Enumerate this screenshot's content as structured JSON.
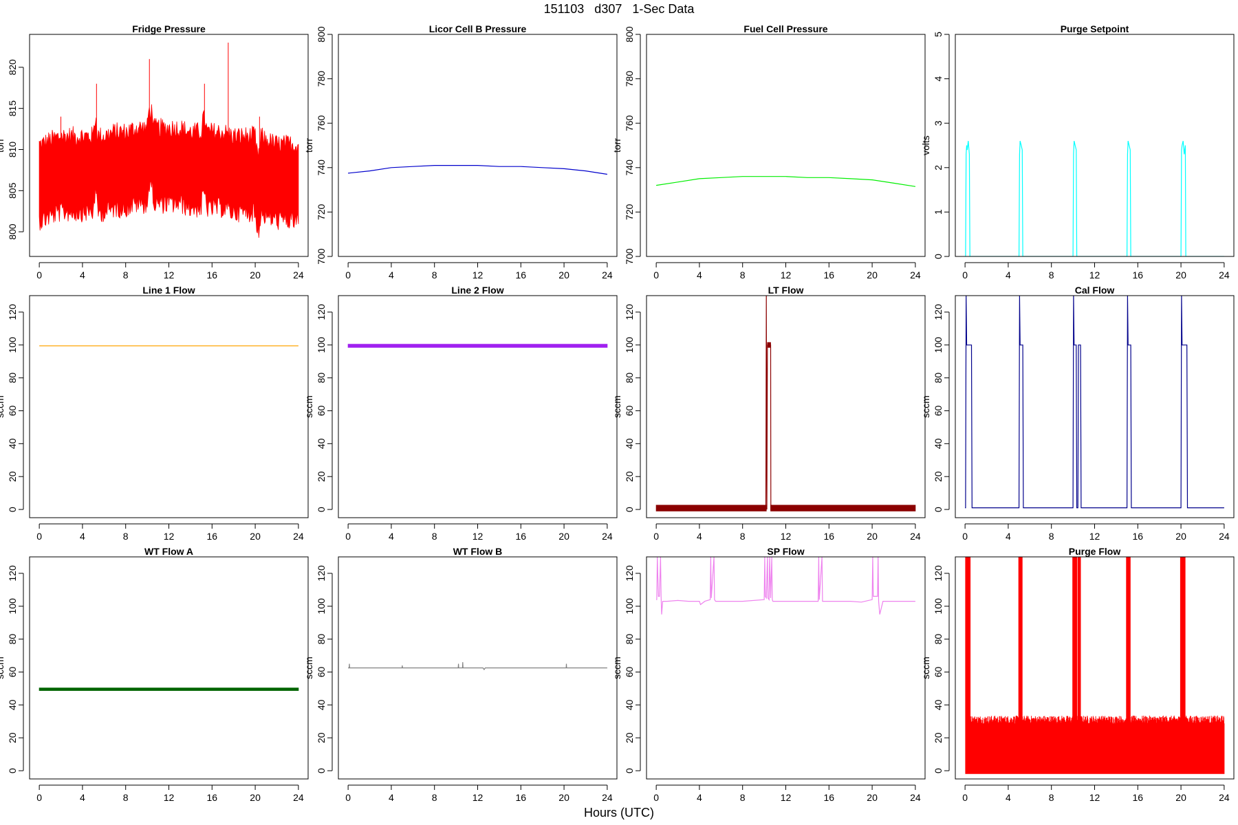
{
  "figure": {
    "title": "151103   d307   1-Sec Data",
    "xlabel": "Hours (UTC)"
  },
  "chart_data": [
    {
      "type": "line",
      "title": "Fridge Pressure",
      "ylabel": "torr",
      "color": "#ff0000",
      "xlim": [
        0,
        24
      ],
      "ylim": [
        797,
        824
      ],
      "xticks": [
        0,
        4,
        8,
        12,
        16,
        20,
        24
      ],
      "yticks": [
        800,
        805,
        810,
        815,
        820
      ],
      "series": [
        {
          "style": "noise_band",
          "x": [
            0,
            0.2,
            1,
            2,
            3,
            4,
            5,
            5.1,
            5.3,
            5.4,
            6,
            7,
            8,
            9,
            10,
            10.1,
            10.5,
            10.6,
            11,
            12,
            13,
            14,
            15,
            15.1,
            15.4,
            15.5,
            16,
            17,
            18,
            19,
            20,
            20.1,
            20.4,
            20.5,
            21,
            22,
            23,
            24
          ],
          "y": [
            806,
            806,
            806.5,
            807,
            807,
            807,
            807,
            809,
            809,
            807,
            807,
            807.5,
            807.5,
            808,
            808,
            810,
            810,
            808,
            808,
            808,
            808,
            807.5,
            807.5,
            809,
            809,
            807.5,
            807.5,
            807.5,
            807,
            807,
            807,
            805,
            805,
            807,
            806.5,
            806,
            806,
            806
          ],
          "spread": 4.5,
          "max_y": 823
        }
      ]
    },
    {
      "type": "line",
      "title": "Licor Cell B Pressure",
      "ylabel": "torr",
      "color": "#0000cc",
      "xlim": [
        0,
        24
      ],
      "ylim": [
        700,
        800
      ],
      "xticks": [
        0,
        4,
        8,
        12,
        16,
        20,
        24
      ],
      "yticks": [
        700,
        720,
        740,
        760,
        780,
        800
      ],
      "series": [
        {
          "style": "line",
          "x": [
            0,
            2,
            4,
            6,
            8,
            10,
            12,
            14,
            16,
            18,
            20,
            22,
            24
          ],
          "y": [
            737.5,
            738.5,
            740,
            740.5,
            741,
            741,
            741,
            740.5,
            740.5,
            740,
            739.5,
            738.5,
            737
          ]
        }
      ]
    },
    {
      "type": "line",
      "title": "Fuel Cell Pressure",
      "ylabel": "torr",
      "color": "#00ee00",
      "xlim": [
        0,
        24
      ],
      "ylim": [
        700,
        800
      ],
      "xticks": [
        0,
        4,
        8,
        12,
        16,
        20,
        24
      ],
      "yticks": [
        700,
        720,
        740,
        760,
        780,
        800
      ],
      "series": [
        {
          "style": "line",
          "x": [
            0,
            2,
            4,
            6,
            8,
            10,
            12,
            14,
            16,
            18,
            20,
            22,
            24
          ],
          "y": [
            732,
            733.5,
            735,
            735.5,
            736,
            736,
            736,
            735.5,
            735.5,
            735,
            734.5,
            733,
            731.5
          ]
        }
      ]
    },
    {
      "type": "line",
      "title": "Purge Setpoint",
      "ylabel": "volts",
      "color": "#00ffff",
      "xlim": [
        0,
        24
      ],
      "ylim": [
        0,
        5
      ],
      "xticks": [
        0,
        4,
        8,
        12,
        16,
        20,
        24
      ],
      "yticks": [
        0,
        1,
        2,
        3,
        4,
        5
      ],
      "series": [
        {
          "style": "line",
          "x": [
            0,
            0.05,
            0.1,
            0.15,
            0.2,
            0.3,
            0.4,
            0.45,
            0.5,
            5,
            5.05,
            5.1,
            5.2,
            5.3,
            5.35,
            5.4,
            10,
            10.05,
            10.1,
            10.2,
            10.3,
            10.35,
            10.4,
            15,
            15.05,
            15.1,
            15.2,
            15.3,
            15.35,
            15.4,
            20,
            20.05,
            20.1,
            20.2,
            20.3,
            20.4,
            20.45,
            20.5,
            24
          ],
          "y": [
            0,
            0,
            2.3,
            2.5,
            2.4,
            2.6,
            2.3,
            0,
            0,
            0,
            2.3,
            2.6,
            2.5,
            2.4,
            0,
            0,
            0,
            2.3,
            2.6,
            2.5,
            2.4,
            0,
            0,
            0,
            2.3,
            2.6,
            2.5,
            2.4,
            0,
            0,
            0,
            2.4,
            2.5,
            2.6,
            2.3,
            2.5,
            0,
            0,
            0
          ]
        }
      ]
    },
    {
      "type": "line",
      "title": "Line 1 Flow",
      "ylabel": "sccm",
      "color": "#ffa500",
      "xlim": [
        0,
        24
      ],
      "ylim": [
        -5,
        130
      ],
      "xticks": [
        0,
        4,
        8,
        12,
        16,
        20,
        24
      ],
      "yticks": [
        0,
        20,
        40,
        60,
        80,
        100,
        120
      ],
      "series": [
        {
          "style": "line",
          "x": [
            0,
            24
          ],
          "y": [
            99.5,
            99.5
          ]
        }
      ]
    },
    {
      "type": "line",
      "title": "Line 2 Flow",
      "ylabel": "sccm",
      "color": "#a020f0",
      "xlim": [
        0,
        24
      ],
      "ylim": [
        -5,
        130
      ],
      "xticks": [
        0,
        4,
        8,
        12,
        16,
        20,
        24
      ],
      "yticks": [
        0,
        20,
        40,
        60,
        80,
        100,
        120
      ],
      "series": [
        {
          "style": "band",
          "x": [
            0,
            24
          ],
          "y": [
            99.5,
            99.5
          ],
          "spread": 1
        }
      ]
    },
    {
      "type": "line",
      "title": "LT Flow",
      "ylabel": "sccm",
      "color": "#8b0000",
      "xlim": [
        0,
        24
      ],
      "ylim": [
        -5,
        130
      ],
      "xticks": [
        0,
        4,
        8,
        12,
        16,
        20,
        24
      ],
      "yticks": [
        0,
        20,
        40,
        60,
        80,
        100,
        120
      ],
      "series": [
        {
          "style": "band",
          "x": [
            0,
            10.2
          ],
          "y": [
            0.8,
            0.8
          ],
          "spread": 1.8
        },
        {
          "style": "band",
          "x": [
            10.6,
            24
          ],
          "y": [
            0.8,
            0.8
          ],
          "spread": 1.8
        },
        {
          "style": "band",
          "x": [
            10.3,
            10.6
          ],
          "y": [
            100,
            100
          ],
          "spread": 1.5
        },
        {
          "style": "line",
          "x": [
            10.15,
            10.2,
            10.25,
            10.3,
            10.6,
            10.62,
            10.65
          ],
          "y": [
            0,
            130,
            0,
            100,
            100,
            0,
            0
          ]
        }
      ]
    },
    {
      "type": "line",
      "title": "Cal Flow",
      "ylabel": "sccm",
      "color": "#00008b",
      "xlim": [
        0,
        24
      ],
      "ylim": [
        -5,
        130
      ],
      "xticks": [
        0,
        4,
        8,
        12,
        16,
        20,
        24
      ],
      "yticks": [
        0,
        20,
        40,
        60,
        80,
        100,
        120
      ],
      "series": [
        {
          "style": "line",
          "x": [
            0,
            0.05,
            0.1,
            0.15,
            0.6,
            0.65,
            5.0,
            5.05,
            5.1,
            5.15,
            5.35,
            5.4,
            10.0,
            10.05,
            10.1,
            10.15,
            10.3,
            10.35,
            10.45,
            10.5,
            10.7,
            10.75,
            15.0,
            15.05,
            15.1,
            15.15,
            15.35,
            15.4,
            20.0,
            20.05,
            20.1,
            20.15,
            20.55,
            20.6,
            24
          ],
          "y": [
            1,
            1,
            130,
            100,
            100,
            1,
            1,
            130,
            100,
            100,
            100,
            1,
            1,
            130,
            100,
            100,
            100,
            1,
            1,
            100,
            100,
            1,
            1,
            130,
            100,
            100,
            100,
            1,
            1,
            130,
            100,
            100,
            100,
            1,
            1
          ]
        }
      ]
    },
    {
      "type": "line",
      "title": "WT Flow A",
      "ylabel": "sccm",
      "color": "#006400",
      "xlim": [
        0,
        24
      ],
      "ylim": [
        -5,
        130
      ],
      "xticks": [
        0,
        4,
        8,
        12,
        16,
        20,
        24
      ],
      "yticks": [
        0,
        20,
        40,
        60,
        80,
        100,
        120
      ],
      "series": [
        {
          "style": "band",
          "x": [
            0,
            24
          ],
          "y": [
            49.5,
            49.5
          ],
          "spread": 0.8
        }
      ]
    },
    {
      "type": "line",
      "title": "WT Flow B",
      "ylabel": "sccm",
      "color": "#808080",
      "xlim": [
        0,
        24
      ],
      "ylim": [
        -5,
        130
      ],
      "xticks": [
        0,
        4,
        8,
        12,
        16,
        20,
        24
      ],
      "yticks": [
        0,
        20,
        40,
        60,
        80,
        100,
        120
      ],
      "series": [
        {
          "style": "line",
          "x": [
            0,
            0.1,
            0.12,
            0.14,
            5,
            5.02,
            5.04,
            10.2,
            10.22,
            10.24,
            10.6,
            10.62,
            10.64,
            12.5,
            12.6,
            12.7,
            20.2,
            20.22,
            20.24,
            24
          ],
          "y": [
            62.5,
            62.5,
            65,
            62.5,
            62.5,
            64,
            62.5,
            62.5,
            65,
            62.5,
            62.5,
            66,
            62.5,
            62.5,
            61.5,
            62.5,
            62.5,
            65,
            62.5,
            62.5
          ]
        }
      ]
    },
    {
      "type": "line",
      "title": "SP Flow",
      "ylabel": "sccm",
      "color": "#ee82ee",
      "xlim": [
        0,
        24
      ],
      "ylim": [
        -5,
        130
      ],
      "xticks": [
        0,
        4,
        8,
        12,
        16,
        20,
        24
      ],
      "yticks": [
        0,
        20,
        40,
        60,
        80,
        100,
        120
      ],
      "series": [
        {
          "style": "line",
          "x": [
            0,
            0.05,
            0.1,
            0.2,
            0.3,
            0.4,
            0.45,
            0.5,
            0.6,
            1,
            2,
            3,
            4,
            4.1,
            4.5,
            5.0,
            5.05,
            5.1,
            5.35,
            5.4,
            5.5,
            6,
            8,
            10.0,
            10.05,
            10.1,
            10.2,
            10.3,
            10.35,
            10.45,
            10.5,
            10.6,
            10.7,
            10.75,
            10.8,
            12,
            15.0,
            15.05,
            15.1,
            15.35,
            15.4,
            15.5,
            16,
            18,
            19,
            20.0,
            20.05,
            20.1,
            20.5,
            20.55,
            20.6,
            20.7,
            21,
            22,
            23,
            24
          ],
          "y": [
            104,
            104,
            130,
            106,
            106,
            130,
            106,
            95,
            103,
            103,
            103.5,
            103,
            103,
            101,
            103,
            104,
            130,
            105,
            130,
            104,
            103,
            103,
            103,
            104,
            130,
            106,
            105,
            130,
            105,
            104,
            130,
            105,
            130,
            104,
            103,
            103,
            103,
            130,
            104,
            130,
            103,
            103,
            103,
            103,
            102.5,
            104,
            130,
            106,
            106,
            130,
            103,
            95,
            103,
            103,
            103,
            103
          ]
        }
      ]
    },
    {
      "type": "line",
      "title": "Purge Flow",
      "ylabel": "sccm",
      "color": "#ff0000",
      "xlim": [
        0,
        24
      ],
      "ylim": [
        -5,
        130
      ],
      "xticks": [
        0,
        4,
        8,
        12,
        16,
        20,
        24
      ],
      "yticks": [
        0,
        20,
        40,
        60,
        80,
        100,
        120
      ],
      "series": [
        {
          "style": "spikes",
          "x_start": 0.05,
          "x_end": 24,
          "baseline": -2,
          "level": 30,
          "level_spread": 5,
          "bursts": [
            [
              0.05,
              0.5
            ],
            [
              4.95,
              5.3
            ],
            [
              9.95,
              10.35
            ],
            [
              10.45,
              10.7
            ],
            [
              14.95,
              15.3
            ],
            [
              19.95,
              20.4
            ]
          ]
        }
      ]
    }
  ]
}
